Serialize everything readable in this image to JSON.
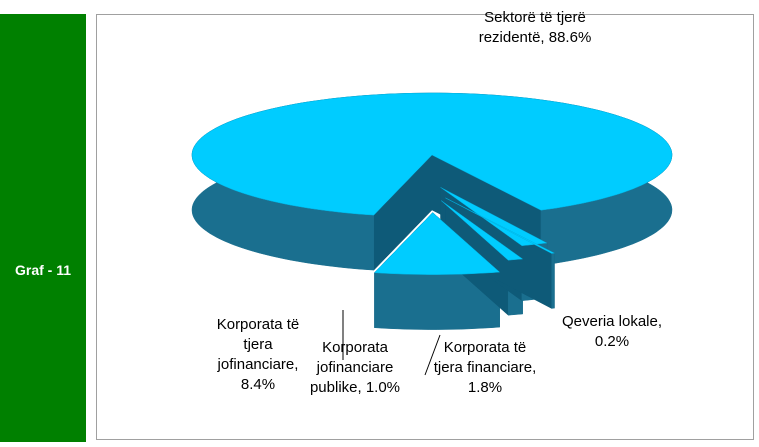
{
  "sidebar": {
    "label": "Graf - 11"
  },
  "chart_data": {
    "type": "pie",
    "categories": [
      "Sektorë të tjerë rezidentë,",
      "Korporata të tjera jofinanciare,",
      "Korporata jofinanciare publike,",
      "Korporata të tjera financiare,",
      "Qeveria lokale,"
    ],
    "values": [
      88.6,
      8.4,
      1.0,
      1.8,
      0.2
    ],
    "value_labels": [
      "88.6%",
      "8.4%",
      "1.0%",
      "1.8%",
      "0.2%"
    ],
    "colors": [
      "#00ccff",
      "#00ccff",
      "#00ccff",
      "#00ccff",
      "#00ccff"
    ]
  }
}
